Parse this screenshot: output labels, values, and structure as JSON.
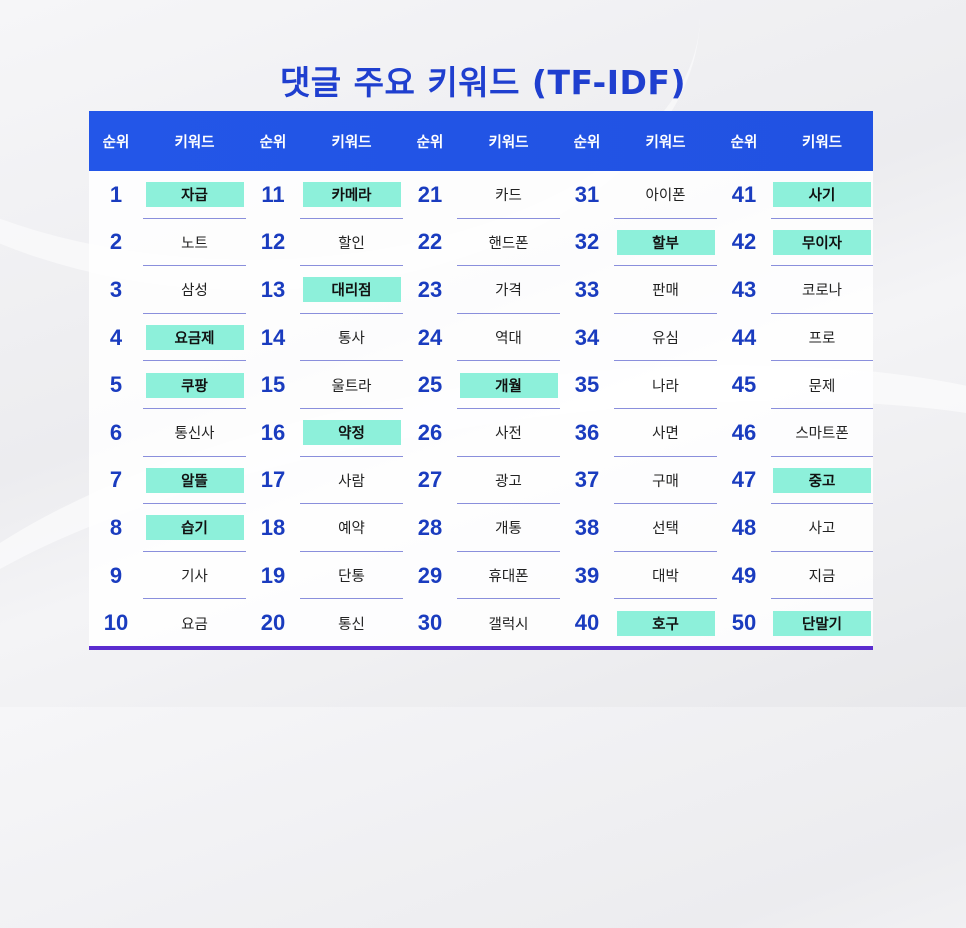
{
  "title": "댓글 주요 키워드 (TF-IDF)",
  "header": {
    "rank_label": "순위",
    "keyword_label": "키워드"
  },
  "colors": {
    "title": "#1f3fcf",
    "header_bg": "#2356e8",
    "rank_text": "#1a3cbf",
    "highlight": "#8df0da",
    "separator": "#8a8fdc",
    "bottom_bar": "#5b2ccf"
  },
  "keywords": [
    {
      "rank": "1",
      "keyword": "자급",
      "highlight": true
    },
    {
      "rank": "2",
      "keyword": "노트",
      "highlight": false
    },
    {
      "rank": "3",
      "keyword": "삼성",
      "highlight": false
    },
    {
      "rank": "4",
      "keyword": "요금제",
      "highlight": true
    },
    {
      "rank": "5",
      "keyword": "쿠팡",
      "highlight": true
    },
    {
      "rank": "6",
      "keyword": "통신사",
      "highlight": false
    },
    {
      "rank": "7",
      "keyword": "알뜰",
      "highlight": true
    },
    {
      "rank": "8",
      "keyword": "습기",
      "highlight": true
    },
    {
      "rank": "9",
      "keyword": "기사",
      "highlight": false
    },
    {
      "rank": "10",
      "keyword": "요금",
      "highlight": false
    },
    {
      "rank": "11",
      "keyword": "카메라",
      "highlight": true
    },
    {
      "rank": "12",
      "keyword": "할인",
      "highlight": false
    },
    {
      "rank": "13",
      "keyword": "대리점",
      "highlight": true
    },
    {
      "rank": "14",
      "keyword": "통사",
      "highlight": false
    },
    {
      "rank": "15",
      "keyword": "울트라",
      "highlight": false
    },
    {
      "rank": "16",
      "keyword": "약정",
      "highlight": true
    },
    {
      "rank": "17",
      "keyword": "사람",
      "highlight": false
    },
    {
      "rank": "18",
      "keyword": "예약",
      "highlight": false
    },
    {
      "rank": "19",
      "keyword": "단통",
      "highlight": false
    },
    {
      "rank": "20",
      "keyword": "통신",
      "highlight": false
    },
    {
      "rank": "21",
      "keyword": "카드",
      "highlight": false
    },
    {
      "rank": "22",
      "keyword": "핸드폰",
      "highlight": false
    },
    {
      "rank": "23",
      "keyword": "가격",
      "highlight": false
    },
    {
      "rank": "24",
      "keyword": "역대",
      "highlight": false
    },
    {
      "rank": "25",
      "keyword": "개월",
      "highlight": true
    },
    {
      "rank": "26",
      "keyword": "사전",
      "highlight": false
    },
    {
      "rank": "27",
      "keyword": "광고",
      "highlight": false
    },
    {
      "rank": "28",
      "keyword": "개통",
      "highlight": false
    },
    {
      "rank": "29",
      "keyword": "휴대폰",
      "highlight": false
    },
    {
      "rank": "30",
      "keyword": "갤럭시",
      "highlight": false
    },
    {
      "rank": "31",
      "keyword": "아이폰",
      "highlight": false
    },
    {
      "rank": "32",
      "keyword": "할부",
      "highlight": true
    },
    {
      "rank": "33",
      "keyword": "판매",
      "highlight": false
    },
    {
      "rank": "34",
      "keyword": "유심",
      "highlight": false
    },
    {
      "rank": "35",
      "keyword": "나라",
      "highlight": false
    },
    {
      "rank": "36",
      "keyword": "사면",
      "highlight": false
    },
    {
      "rank": "37",
      "keyword": "구매",
      "highlight": false
    },
    {
      "rank": "38",
      "keyword": "선택",
      "highlight": false
    },
    {
      "rank": "39",
      "keyword": "대박",
      "highlight": false
    },
    {
      "rank": "40",
      "keyword": "호구",
      "highlight": true
    },
    {
      "rank": "41",
      "keyword": "사기",
      "highlight": true
    },
    {
      "rank": "42",
      "keyword": "무이자",
      "highlight": true
    },
    {
      "rank": "43",
      "keyword": "코로나",
      "highlight": false
    },
    {
      "rank": "44",
      "keyword": "프로",
      "highlight": false
    },
    {
      "rank": "45",
      "keyword": "문제",
      "highlight": false
    },
    {
      "rank": "46",
      "keyword": "스마트폰",
      "highlight": false
    },
    {
      "rank": "47",
      "keyword": "중고",
      "highlight": true
    },
    {
      "rank": "48",
      "keyword": "사고",
      "highlight": false
    },
    {
      "rank": "49",
      "keyword": "지금",
      "highlight": false
    },
    {
      "rank": "50",
      "keyword": "단말기",
      "highlight": true
    }
  ]
}
